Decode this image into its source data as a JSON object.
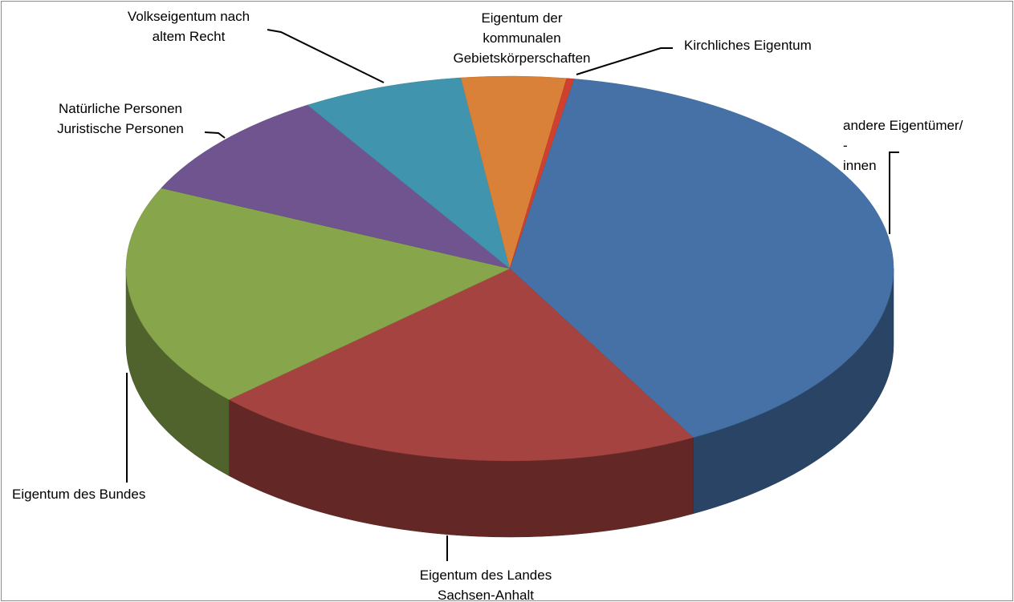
{
  "chart_data": {
    "type": "pie",
    "categories": [
      "andere Eigentümer/ -\ninnen",
      "Eigentum des Landes\nSachsen-Anhalt",
      "Eigentum des Bundes",
      "Natürliche Personen\nJuristische Personen",
      "Volkseigentum  nach\naltem Recht",
      "Eigentum der\nkommunalen\nGebietskörperschaften",
      "Kirchliches Eigentum"
    ],
    "values": [
      39.4,
      21.0,
      18.8,
      9.3,
      6.8,
      4.4,
      0.3
    ],
    "colors": [
      "#4571a7",
      "#a54340",
      "#87a54a",
      "#6f548f",
      "#4094ad",
      "#d98139",
      "#d0402e"
    ]
  }
}
